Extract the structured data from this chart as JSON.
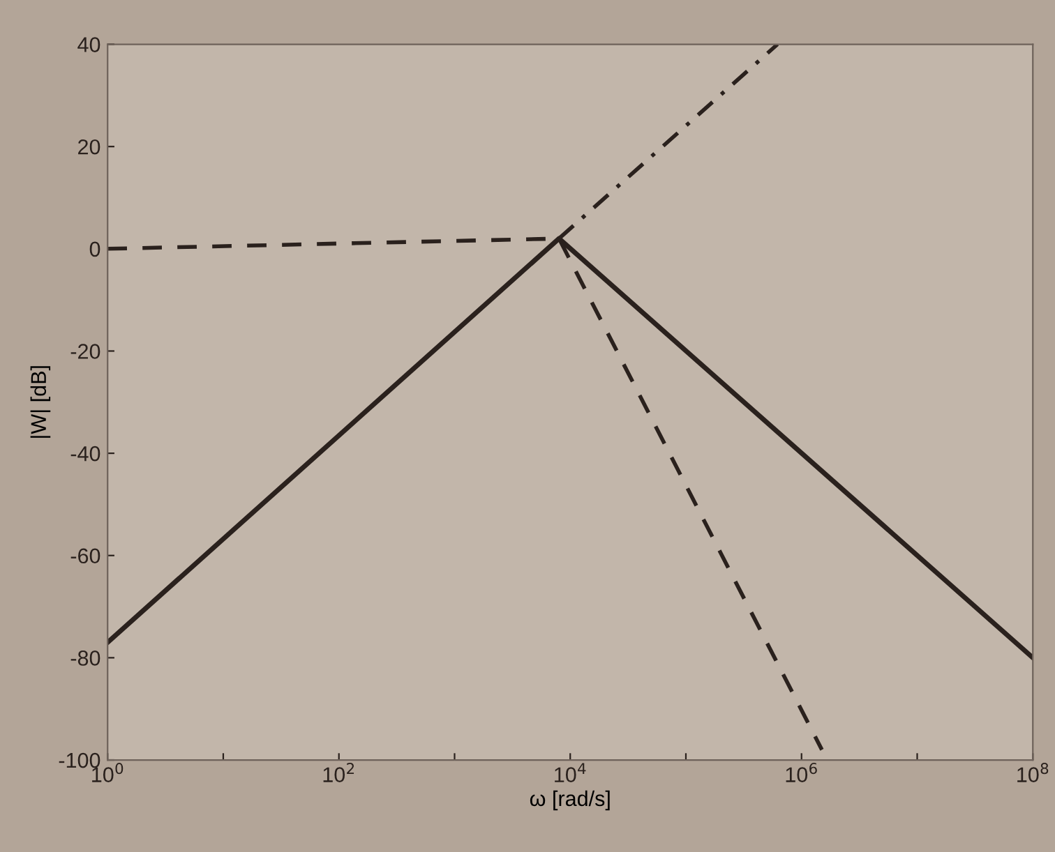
{
  "chart_data": {
    "type": "line",
    "xlabel": "ω [rad/s]",
    "ylabel": "|W| [dB]",
    "log": "x",
    "xlim": [
      1,
      100000000
    ],
    "ylim": [
      -100,
      40
    ],
    "xticks": [
      {
        "value": 1,
        "label": "10$^{0}$"
      },
      {
        "value": 10,
        "label": null
      },
      {
        "value": 100,
        "label": "10$^{2}$"
      },
      {
        "value": 1000,
        "label": null
      },
      {
        "value": 10000,
        "label": "10$^{4}$"
      },
      {
        "value": 100000,
        "label": null
      },
      {
        "value": 1000000,
        "label": "10$^{6}$"
      },
      {
        "value": 10000000,
        "label": null
      },
      {
        "value": 100000000,
        "label": "10$^{8}$"
      }
    ],
    "yticks": [
      -100,
      -80,
      -60,
      -40,
      -20,
      0,
      20,
      40
    ],
    "grid": false,
    "legend": false,
    "series": [
      {
        "color": "#2a211d",
        "line_style": "solid",
        "x": [
          1,
          8000,
          100000000
        ],
        "values": [
          -77,
          2,
          -80
        ]
      },
      {
        "color": "#2a211d",
        "line_style": "dashed",
        "x": [
          1,
          8000,
          1500000
        ],
        "values": [
          0,
          2,
          -98
        ]
      },
      {
        "color": "#2a211d",
        "line_style": "dashdot",
        "x": [
          8000,
          620000
        ],
        "values": [
          2,
          40
        ]
      }
    ]
  }
}
